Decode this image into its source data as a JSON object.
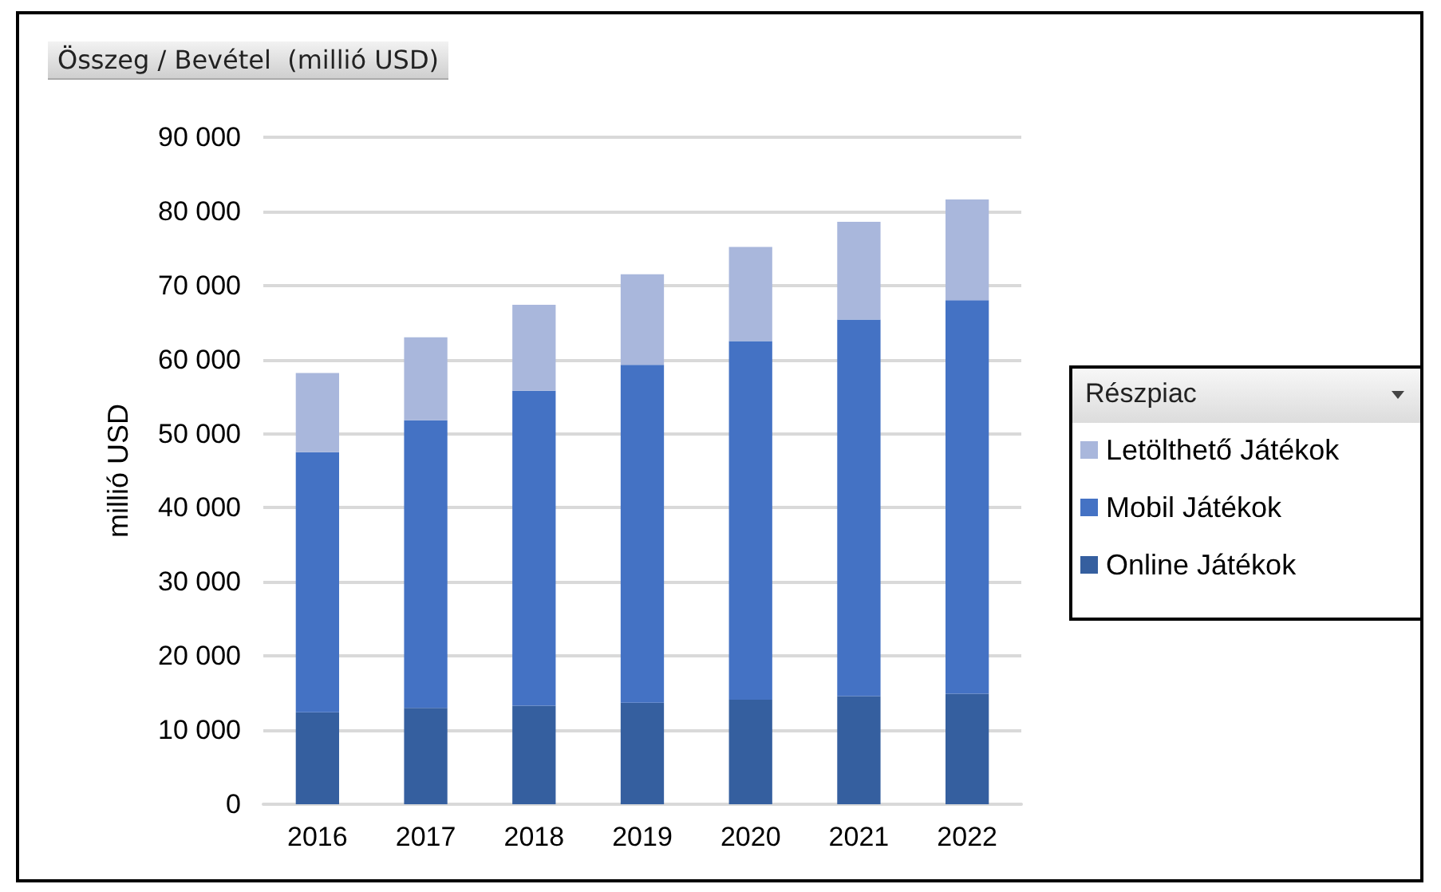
{
  "chart_data": {
    "type": "bar",
    "stacked": true,
    "title": "Összeg / Bevétel  (millió USD)",
    "ylabel": "millió USD",
    "legend_title": "Részpiac",
    "legend": "right",
    "categories": [
      "2016",
      "2017",
      "2018",
      "2019",
      "2020",
      "2021",
      "2022"
    ],
    "series": [
      {
        "name": "Online Játékok",
        "color": "#355f9f",
        "values": [
          12400,
          13000,
          13300,
          13700,
          14100,
          14600,
          14900
        ]
      },
      {
        "name": "Mobil Játékok",
        "color": "#4472c4",
        "values": [
          35100,
          38800,
          42500,
          45600,
          48400,
          50800,
          53100
        ]
      },
      {
        "name": "Letölthető Játékok",
        "color": "#a9b7dc",
        "values": [
          10700,
          11200,
          11600,
          12200,
          12700,
          13200,
          13600
        ]
      }
    ],
    "ylim": [
      0,
      90000
    ],
    "yticks": [
      {
        "value": 0,
        "label": "0"
      },
      {
        "value": 10000,
        "label": "10 000"
      },
      {
        "value": 20000,
        "label": "20 000"
      },
      {
        "value": 30000,
        "label": "30 000"
      },
      {
        "value": 40000,
        "label": "40 000"
      },
      {
        "value": 50000,
        "label": "50 000"
      },
      {
        "value": 60000,
        "label": "60 000"
      },
      {
        "value": 70000,
        "label": "70 000"
      },
      {
        "value": 80000,
        "label": "80 000"
      },
      {
        "value": 90000,
        "label": "90 000"
      }
    ],
    "grid": "y"
  }
}
